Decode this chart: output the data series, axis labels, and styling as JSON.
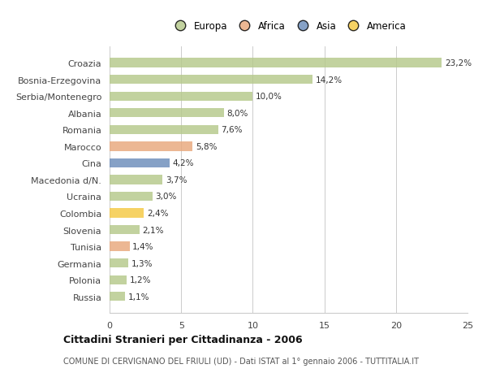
{
  "categories": [
    "Croazia",
    "Bosnia-Erzegovina",
    "Serbia/Montenegro",
    "Albania",
    "Romania",
    "Marocco",
    "Cina",
    "Macedonia d/N.",
    "Ucraina",
    "Colombia",
    "Slovenia",
    "Tunisia",
    "Germania",
    "Polonia",
    "Russia"
  ],
  "values": [
    23.2,
    14.2,
    10.0,
    8.0,
    7.6,
    5.8,
    4.2,
    3.7,
    3.0,
    2.4,
    2.1,
    1.4,
    1.3,
    1.2,
    1.1
  ],
  "labels": [
    "23,2%",
    "14,2%",
    "10,0%",
    "8,0%",
    "7,6%",
    "5,8%",
    "4,2%",
    "3,7%",
    "3,0%",
    "2,4%",
    "2,1%",
    "1,4%",
    "1,3%",
    "1,2%",
    "1,1%"
  ],
  "continents": [
    "Europa",
    "Europa",
    "Europa",
    "Europa",
    "Europa",
    "Africa",
    "Asia",
    "Europa",
    "Europa",
    "America",
    "Europa",
    "Africa",
    "Europa",
    "Europa",
    "Europa"
  ],
  "colors": {
    "Europa": "#b5c98a",
    "Africa": "#e8a87c",
    "Asia": "#6b8cba",
    "America": "#f5c842"
  },
  "bar_alpha": 0.82,
  "title": "Cittadini Stranieri per Cittadinanza - 2006",
  "subtitle": "COMUNE DI CERVIGNANO DEL FRIULI (UD) - Dati ISTAT al 1° gennaio 2006 - TUTTITALIA.IT",
  "xlim": [
    0,
    25
  ],
  "xticks": [
    0,
    5,
    10,
    15,
    20,
    25
  ],
  "background_color": "#ffffff",
  "grid_color": "#cccccc",
  "bar_height": 0.55
}
